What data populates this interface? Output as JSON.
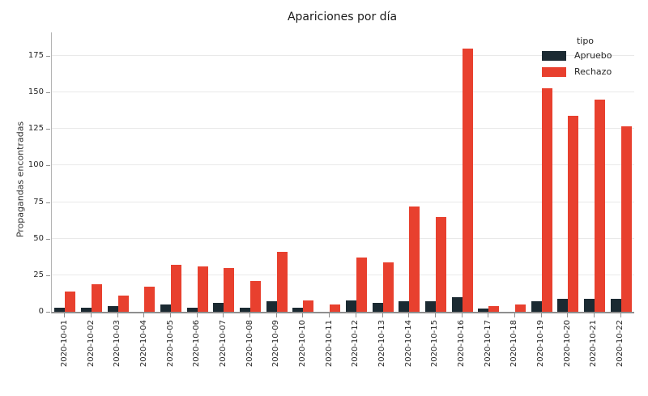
{
  "title": "Apariciones por día",
  "chart_data": {
    "type": "bar",
    "title": "Apariciones por día",
    "xlabel": "",
    "ylabel": "Propagandas encontradas",
    "categories": [
      "2020-10-01",
      "2020-10-02",
      "2020-10-03",
      "2020-10-04",
      "2020-10-05",
      "2020-10-06",
      "2020-10-07",
      "2020-10-08",
      "2020-10-09",
      "2020-10-10",
      "2020-10-11",
      "2020-10-12",
      "2020-10-13",
      "2020-10-14",
      "2020-10-15",
      "2020-10-16",
      "2020-10-17",
      "2020-10-18",
      "2020-10-19",
      "2020-10-20",
      "2020-10-21",
      "2020-10-22"
    ],
    "series": [
      {
        "name": "Apruebo",
        "color": "#1b2a32",
        "values": [
          3,
          3,
          4,
          0,
          5,
          3,
          6,
          3,
          7,
          3,
          0,
          8,
          6,
          7,
          7,
          10,
          2,
          0,
          7,
          9,
          9,
          9
        ]
      },
      {
        "name": "Rechazo",
        "color": "#e8402e",
        "values": [
          14,
          19,
          11,
          17,
          32,
          31,
          30,
          21,
          41,
          8,
          5,
          37,
          34,
          72,
          65,
          180,
          4,
          5,
          153,
          134,
          145,
          127
        ]
      }
    ],
    "ylim": [
      0,
      191
    ],
    "yticks": [
      0,
      25,
      50,
      75,
      100,
      125,
      150,
      175
    ],
    "grid": true,
    "legend_title": "tipo",
    "legend_position": "upper right"
  }
}
